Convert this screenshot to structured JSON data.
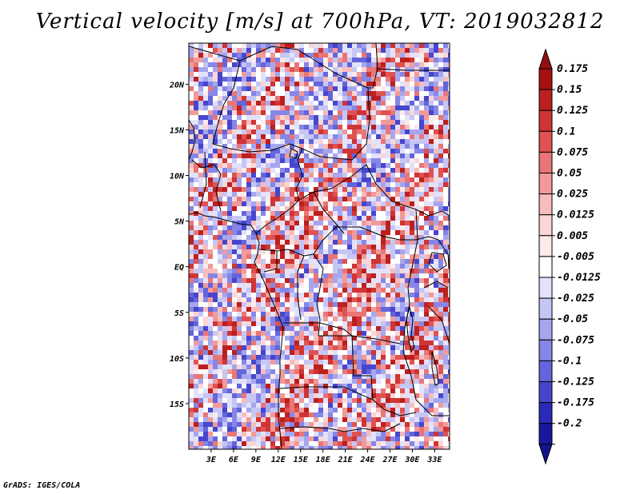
{
  "title": "Vertical velocity [m/s] at 700hPa, VT: 2019032812",
  "credit": "GrADS: IGES/COLA",
  "map": {
    "lon_range": [
      0,
      35
    ],
    "lat_range": [
      -20,
      24.5
    ],
    "lat_ticks": [
      {
        "value": 20,
        "label": "20N"
      },
      {
        "value": 15,
        "label": "15N"
      },
      {
        "value": 10,
        "label": "10N"
      },
      {
        "value": 5,
        "label": "5N"
      },
      {
        "value": 0,
        "label": "EQ"
      },
      {
        "value": -5,
        "label": "5S"
      },
      {
        "value": -10,
        "label": "10S"
      },
      {
        "value": -15,
        "label": "15S"
      }
    ],
    "lon_ticks": [
      {
        "value": 3,
        "label": "3E"
      },
      {
        "value": 6,
        "label": "6E"
      },
      {
        "value": 9,
        "label": "9E"
      },
      {
        "value": 12,
        "label": "12E"
      },
      {
        "value": 15,
        "label": "15E"
      },
      {
        "value": 18,
        "label": "18E"
      },
      {
        "value": 21,
        "label": "21E"
      },
      {
        "value": 24,
        "label": "24E"
      },
      {
        "value": 27,
        "label": "27E"
      },
      {
        "value": 30,
        "label": "30E"
      },
      {
        "value": 33,
        "label": "33E"
      }
    ]
  },
  "colorbar": {
    "levels": [
      {
        "label": "0.175",
        "color": "#a61010"
      },
      {
        "label": "0.15",
        "color": "#bc1f1f"
      },
      {
        "label": "0.125",
        "color": "#d03434"
      },
      {
        "label": "0.1",
        "color": "#e05252"
      },
      {
        "label": "0.075",
        "color": "#e97676"
      },
      {
        "label": "0.05",
        "color": "#f19a9a"
      },
      {
        "label": "0.025",
        "color": "#f7bcbc"
      },
      {
        "label": "0.0125",
        "color": "#fad6d6"
      },
      {
        "label": "0.005",
        "color": "#fdeaea"
      },
      {
        "label": "-0.005",
        "color": "#ffffff"
      },
      {
        "label": "-0.0125",
        "color": "#e2e2fa"
      },
      {
        "label": "-0.025",
        "color": "#c6c6f5"
      },
      {
        "label": "-0.05",
        "color": "#a6a6ef"
      },
      {
        "label": "-0.075",
        "color": "#8686e6"
      },
      {
        "label": "-0.1",
        "color": "#6464dc"
      },
      {
        "label": "-0.125",
        "color": "#4646cc"
      },
      {
        "label": "-0.175",
        "color": "#2a2ab8"
      },
      {
        "label": "-0.2",
        "color": "#18189c"
      }
    ],
    "top_arrow_color": "#941010",
    "bottom_arrow_color": "#14148a"
  }
}
